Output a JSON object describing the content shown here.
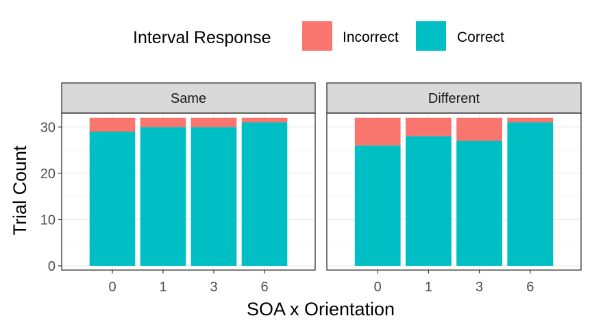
{
  "chart_data": {
    "type": "bar",
    "stacked": true,
    "ylabel": "Trial Count",
    "xlabel": "SOA x Orientation",
    "ylim": [
      -0.9,
      33
    ],
    "yticks": [
      0,
      10,
      20,
      30
    ],
    "grid": true,
    "legend": {
      "title": "Interval Response",
      "position": "top",
      "entries": [
        {
          "name": "Incorrect",
          "color": "#F8766D"
        },
        {
          "name": "Correct",
          "color": "#00BFC4"
        }
      ]
    },
    "categories": [
      "0",
      "1",
      "3",
      "6"
    ],
    "facets": [
      {
        "label": "Same",
        "series": [
          {
            "name": "Correct",
            "values": [
              29,
              30,
              30,
              31
            ]
          },
          {
            "name": "Incorrect",
            "values": [
              3,
              2,
              2,
              1
            ]
          }
        ]
      },
      {
        "label": "Different",
        "series": [
          {
            "name": "Correct",
            "values": [
              26,
              28,
              27,
              31
            ]
          },
          {
            "name": "Incorrect",
            "values": [
              6,
              4,
              5,
              1
            ]
          }
        ]
      }
    ]
  }
}
